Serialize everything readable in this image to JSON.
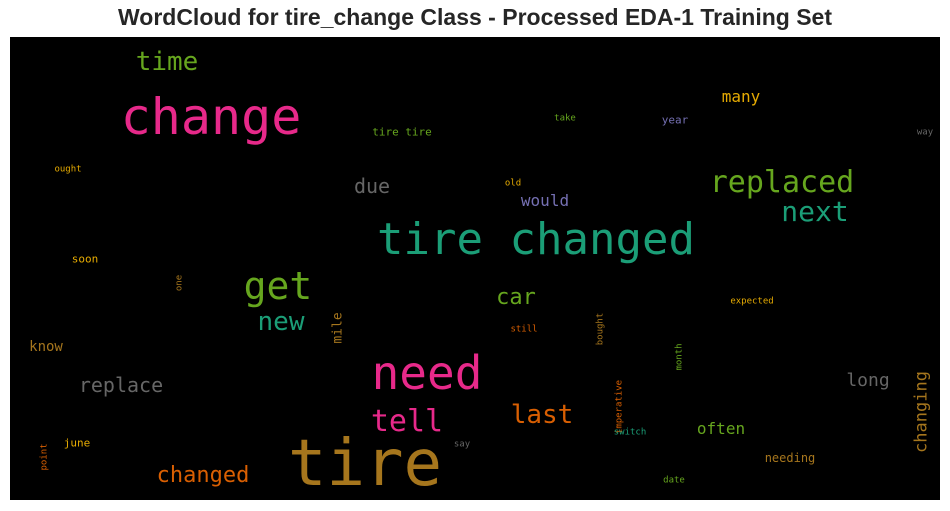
{
  "title": "WordCloud for tire_change Class - Processed EDA-1 Training Set",
  "colors": {
    "pink": "#e7298a",
    "teal": "#1b9e77",
    "olive": "#66a61e",
    "orange": "#d95f02",
    "gold": "#e6ab02",
    "brown": "#a6761d",
    "gray": "#666666",
    "purple": "#7570b3"
  },
  "words": {
    "change": "change",
    "tire_changed": "tire changed",
    "tire": "tire",
    "need": "need",
    "get": "get",
    "replaced": "replaced",
    "next": "next",
    "time": "time",
    "new": "new",
    "tell": "tell",
    "last": "last",
    "car": "car",
    "due": "due",
    "replace": "replace",
    "changed": "changed",
    "many": "many",
    "long": "long",
    "changing": "changing",
    "often": "often",
    "would": "would",
    "know": "know",
    "tire_tire": "tire tire",
    "year": "year",
    "take": "take",
    "way": "way",
    "ought": "ought",
    "old": "old",
    "soon": "soon",
    "one": "one",
    "mile": "mile",
    "still": "still",
    "bought": "bought",
    "month": "month",
    "expected": "expected",
    "imperative": "imperative",
    "switch": "switch",
    "say": "say",
    "june": "june",
    "point": "point",
    "needing": "needing",
    "date": "date"
  }
}
